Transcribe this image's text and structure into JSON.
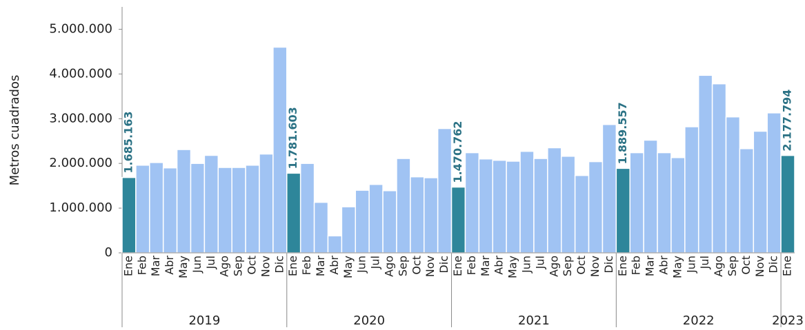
{
  "chart_data": {
    "type": "bar",
    "y_label": "Metros cuadrados",
    "ylim": [
      0,
      5500000
    ],
    "yticks": [
      0,
      {
        "value": 1000000,
        "label": "1.000.000"
      },
      {
        "value": 2000000,
        "label": "2.000.000"
      },
      {
        "value": 3000000,
        "label": "3.000.000"
      },
      {
        "value": 4000000,
        "label": "4.000.000"
      },
      {
        "value": 5000000,
        "label": "5.000.000"
      }
    ],
    "color": "#a0c3f3",
    "highlight_color": "#2e869a",
    "groups": [
      {
        "name": "2019",
        "categories": [
          "Ene",
          "Feb",
          "Mar",
          "Abr",
          "May",
          "Jun",
          "Jul",
          "Ago",
          "Sep",
          "Oct",
          "Nov",
          "Dic"
        ],
        "values": [
          1685163,
          1960000,
          2020000,
          1900000,
          2310000,
          2000000,
          2180000,
          1910000,
          1910000,
          1960000,
          2210000,
          4600000
        ],
        "value_labels": [
          "1.685.163",
          null,
          null,
          null,
          null,
          null,
          null,
          null,
          null,
          null,
          null,
          null
        ]
      },
      {
        "name": "2020",
        "categories": [
          "Ene",
          "Feb",
          "Mar",
          "Abr",
          "May",
          "Jun",
          "Jul",
          "Ago",
          "Sep",
          "Oct",
          "Nov",
          "Dic"
        ],
        "values": [
          1781603,
          2000000,
          1130000,
          380000,
          1030000,
          1400000,
          1530000,
          1390000,
          2110000,
          1700000,
          1680000,
          2780000
        ],
        "value_labels": [
          "1.781.603",
          null,
          null,
          null,
          null,
          null,
          null,
          null,
          null,
          null,
          null,
          null
        ]
      },
      {
        "name": "2021",
        "categories": [
          "Ene",
          "Feb",
          "Mar",
          "Abr",
          "May",
          "Jun",
          "Jul",
          "Ago",
          "Sep",
          "Oct",
          "Nov",
          "Dic"
        ],
        "values": [
          1470762,
          2240000,
          2100000,
          2070000,
          2050000,
          2270000,
          2110000,
          2350000,
          2160000,
          1730000,
          2040000,
          2870000
        ],
        "value_labels": [
          "1.470.762",
          null,
          null,
          null,
          null,
          null,
          null,
          null,
          null,
          null,
          null,
          null
        ]
      },
      {
        "name": "2022",
        "categories": [
          "Ene",
          "Feb",
          "Mar",
          "Abr",
          "May",
          "Jun",
          "Jul",
          "Ago",
          "Sep",
          "Oct",
          "Nov",
          "Dic"
        ],
        "values": [
          1889557,
          2240000,
          2520000,
          2240000,
          2130000,
          2820000,
          3970000,
          3780000,
          3040000,
          2330000,
          2720000,
          3130000
        ],
        "value_labels": [
          "1.889.557",
          null,
          null,
          null,
          null,
          null,
          null,
          null,
          null,
          null,
          null,
          null
        ]
      },
      {
        "name": "2023",
        "categories": [
          "Ene"
        ],
        "values": [
          2177794
        ],
        "value_labels": [
          "2.177.794"
        ]
      }
    ]
  }
}
